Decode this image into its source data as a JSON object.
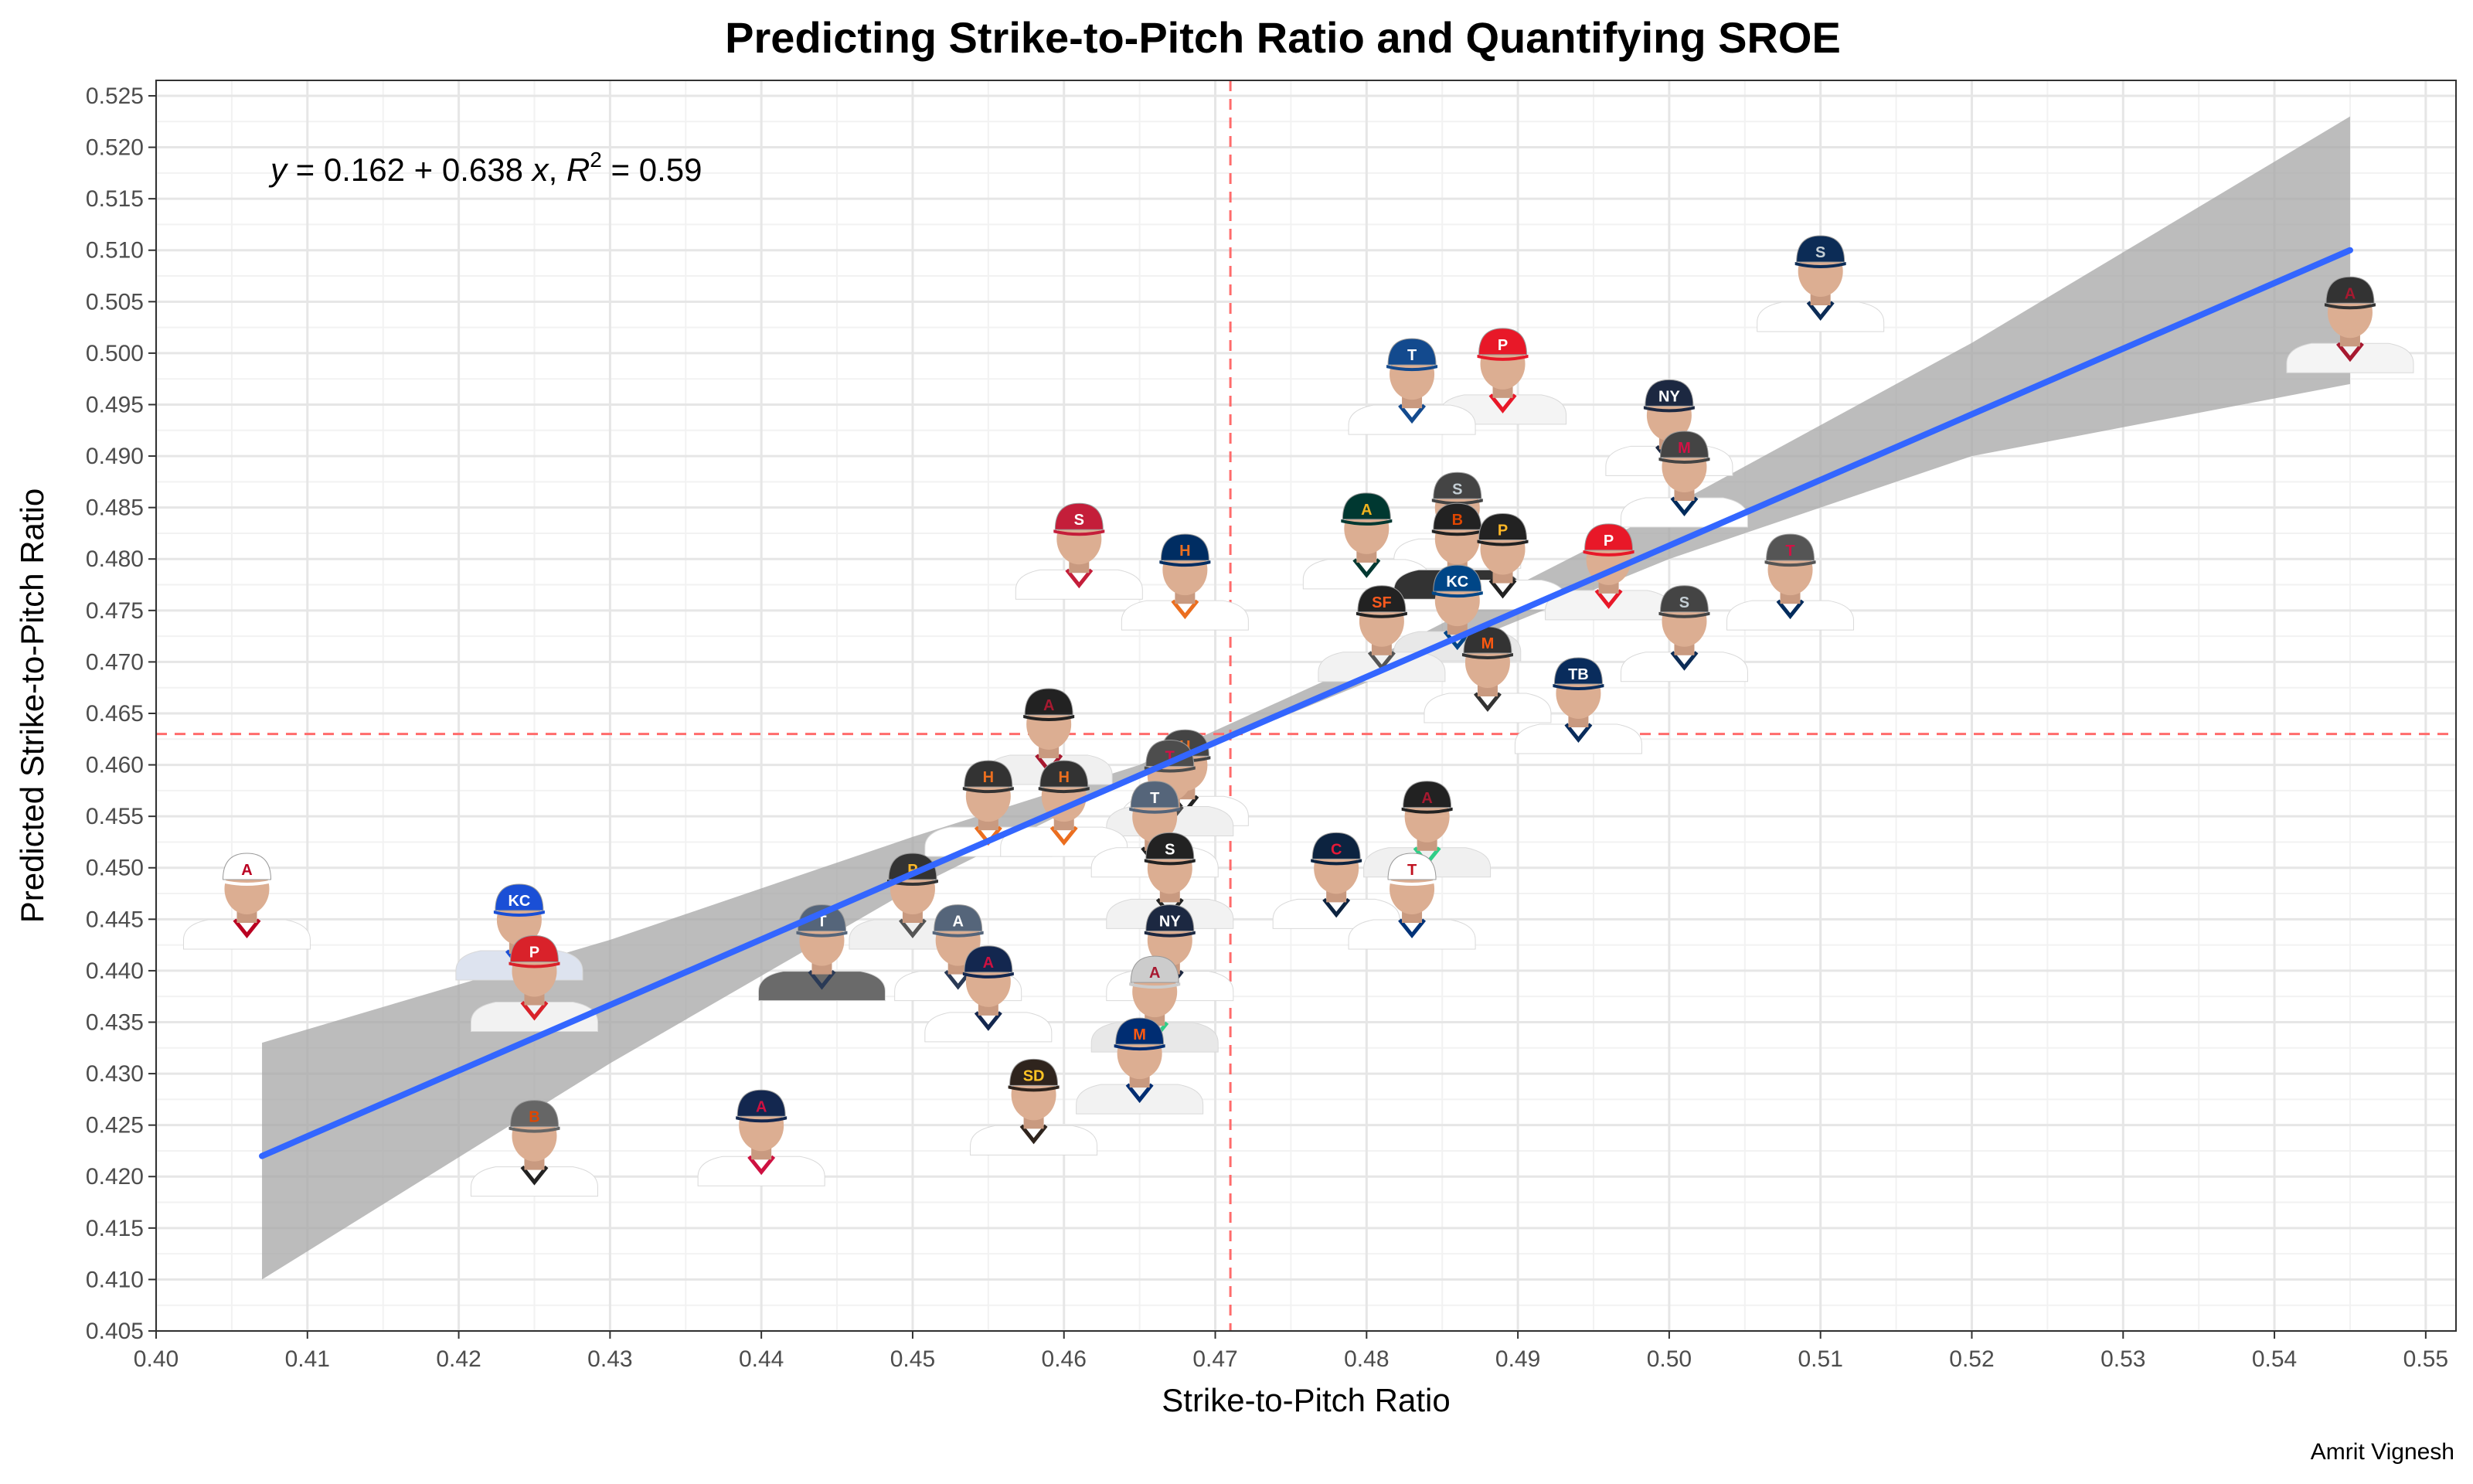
{
  "chart_data": {
    "type": "scatter",
    "title": "Predicting Strike-to-Pitch Ratio and Quantifying SROE",
    "xlabel": "Strike-to-Pitch Ratio",
    "ylabel": "Predicted Strike-to-Pitch Ratio",
    "caption": "Amrit Vignesh",
    "equation": {
      "y": "y",
      "eq_mid": " = 0.162 + 0.638 ",
      "x": "x",
      "sep": ", ",
      "R": "R",
      "sup": "2",
      "tail": " = 0.59",
      "intercept": 0.162,
      "slope": 0.638,
      "r2": 0.59
    },
    "xlim": [
      0.4,
      0.552
    ],
    "ylim": [
      0.405,
      0.5265
    ],
    "x_ticks": [
      "0.40",
      "0.41",
      "0.42",
      "0.43",
      "0.44",
      "0.45",
      "0.46",
      "0.47",
      "0.48",
      "0.49",
      "0.50",
      "0.51",
      "0.52",
      "0.53",
      "0.54",
      "0.55"
    ],
    "y_ticks": [
      "0.405",
      "0.410",
      "0.415",
      "0.420",
      "0.425",
      "0.430",
      "0.435",
      "0.440",
      "0.445",
      "0.450",
      "0.455",
      "0.460",
      "0.465",
      "0.470",
      "0.475",
      "0.480",
      "0.485",
      "0.490",
      "0.495",
      "0.500",
      "0.505",
      "0.510",
      "0.515",
      "0.520",
      "0.525"
    ],
    "mean_x": 0.471,
    "mean_y": 0.463,
    "fit_line": {
      "x": [
        0.407,
        0.545
      ],
      "y": [
        0.422,
        0.51
      ]
    },
    "confidence_band": {
      "x": [
        0.407,
        0.43,
        0.45,
        0.465,
        0.48,
        0.5,
        0.52,
        0.545
      ],
      "lower": [
        0.41,
        0.431,
        0.448,
        0.459,
        0.468,
        0.48,
        0.49,
        0.497
      ],
      "upper": [
        0.433,
        0.443,
        0.453,
        0.46,
        0.47,
        0.485,
        0.501,
        0.523
      ]
    },
    "grid": true,
    "points": [
      {
        "x": 0.406,
        "y": 0.446,
        "team": "LAA",
        "cap": "#ffffff",
        "letter": "A",
        "letter_color": "#ba0021",
        "jersey": "#ffffff",
        "trim": "#ba0021"
      },
      {
        "x": 0.424,
        "y": 0.443,
        "team": "KC",
        "cap": "#1a4fd6",
        "letter": "KC",
        "letter_color": "#ffffff",
        "jersey": "#dde3ef",
        "trim": "#1a4fd6"
      },
      {
        "x": 0.425,
        "y": 0.438,
        "team": "PHI",
        "cap": "#d9222a",
        "letter": "P",
        "letter_color": "#ffffff",
        "jersey": "#f2f2f2",
        "trim": "#d9222a"
      },
      {
        "x": 0.425,
        "y": 0.422,
        "team": "BAL",
        "cap": "#666666",
        "letter": "B",
        "letter_color": "#df4601",
        "jersey": "#ffffff",
        "trim": "#222222"
      },
      {
        "x": 0.44,
        "y": 0.423,
        "team": "ATL",
        "cap": "#13274f",
        "letter": "A",
        "letter_color": "#ce1141",
        "jersey": "#ffffff",
        "trim": "#ce1141"
      },
      {
        "x": 0.444,
        "y": 0.441,
        "team": "TEX",
        "cap": "#55657a",
        "letter": "T",
        "letter_color": "#ffffff",
        "jersey": "#6a6a6a",
        "trim": "#2a3a56"
      },
      {
        "x": 0.45,
        "y": 0.446,
        "team": "PIT",
        "cap": "#333333",
        "letter": "P",
        "letter_color": "#fdb827",
        "jersey": "#f0f0f0",
        "trim": "#555555"
      },
      {
        "x": 0.453,
        "y": 0.441,
        "team": "TEX",
        "cap": "#55657a",
        "letter": "A",
        "letter_color": "#ffffff",
        "jersey": "#ffffff",
        "trim": "#2a3a56"
      },
      {
        "x": 0.455,
        "y": 0.437,
        "team": "ATL",
        "cap": "#13274f",
        "letter": "A",
        "letter_color": "#ce1141",
        "jersey": "#ffffff",
        "trim": "#13274f"
      },
      {
        "x": 0.455,
        "y": 0.455,
        "team": "HOU",
        "cap": "#333333",
        "letter": "H",
        "letter_color": "#eb6e1f",
        "jersey": "#ffffff",
        "trim": "#eb6e1f"
      },
      {
        "x": 0.459,
        "y": 0.462,
        "team": "ARI",
        "cap": "#222222",
        "letter": "A",
        "letter_color": "#a71930",
        "jersey": "#f0f0f0",
        "trim": "#a71930"
      },
      {
        "x": 0.46,
        "y": 0.455,
        "team": "HOU",
        "cap": "#333333",
        "letter": "H",
        "letter_color": "#eb6e1f",
        "jersey": "#ffffff",
        "trim": "#eb6e1f"
      },
      {
        "x": 0.458,
        "y": 0.426,
        "team": "SD",
        "cap": "#2f241d",
        "letter": "SD",
        "letter_color": "#ffc425",
        "jersey": "#ffffff",
        "trim": "#2f241d"
      },
      {
        "x": 0.461,
        "y": 0.48,
        "team": "STL",
        "cap": "#c41e3a",
        "letter": "S",
        "letter_color": "#ffffff",
        "jersey": "#ffffff",
        "trim": "#c41e3a"
      },
      {
        "x": 0.465,
        "y": 0.43,
        "team": "NYM",
        "cap": "#002d72",
        "letter": "M",
        "letter_color": "#ff5910",
        "jersey": "#f2f2f2",
        "trim": "#002d72"
      },
      {
        "x": 0.466,
        "y": 0.453,
        "team": "TEX",
        "cap": "#55657a",
        "letter": "T",
        "letter_color": "#ffffff",
        "jersey": "#ffffff",
        "trim": "#222222"
      },
      {
        "x": 0.467,
        "y": 0.457,
        "team": "MIN",
        "cap": "#4d4d4d",
        "letter": "T",
        "letter_color": "#d31145",
        "jersey": "#f0f0f0",
        "trim": "#4d4d4d"
      },
      {
        "x": 0.467,
        "y": 0.448,
        "team": "CWS",
        "cap": "#222222",
        "letter": "S",
        "letter_color": "#ffffff",
        "jersey": "#f2f2f2",
        "trim": "#222222"
      },
      {
        "x": 0.467,
        "y": 0.441,
        "team": "NYY",
        "cap": "#1c2841",
        "letter": "NY",
        "letter_color": "#ffffff",
        "jersey": "#ffffff",
        "trim": "#1c2841"
      },
      {
        "x": 0.466,
        "y": 0.436,
        "team": "ARI",
        "cap": "#cccccc",
        "letter": "A",
        "letter_color": "#a71930",
        "jersey": "#e8e8e8",
        "trim": "#30ce88"
      },
      {
        "x": 0.468,
        "y": 0.458,
        "team": "HOU",
        "cap": "#444444",
        "letter": "H",
        "letter_color": "#eb6e1f",
        "jersey": "#ffffff",
        "trim": "#222222"
      },
      {
        "x": 0.468,
        "y": 0.477,
        "team": "HOU",
        "cap": "#002d62",
        "letter": "H",
        "letter_color": "#eb6e1f",
        "jersey": "#ffffff",
        "trim": "#eb6e1f"
      },
      {
        "x": 0.48,
        "y": 0.481,
        "team": "OAK",
        "cap": "#003831",
        "letter": "A",
        "letter_color": "#efb21e",
        "jersey": "#ffffff",
        "trim": "#003831"
      },
      {
        "x": 0.478,
        "y": 0.448,
        "team": "CLE",
        "cap": "#0c2340",
        "letter": "C",
        "letter_color": "#e31937",
        "jersey": "#ffffff",
        "trim": "#0c2340"
      },
      {
        "x": 0.481,
        "y": 0.472,
        "team": "SF",
        "cap": "#222222",
        "letter": "SF",
        "letter_color": "#fd5a1e",
        "jersey": "#f2f2f2",
        "trim": "#555555"
      },
      {
        "x": 0.483,
        "y": 0.496,
        "team": "TOR",
        "cap": "#134a8e",
        "letter": "T",
        "letter_color": "#ffffff",
        "jersey": "#ffffff",
        "trim": "#134a8e"
      },
      {
        "x": 0.483,
        "y": 0.446,
        "team": "TEX",
        "cap": "#ffffff",
        "letter": "T",
        "letter_color": "#c0111f",
        "jersey": "#ffffff",
        "trim": "#003278"
      },
      {
        "x": 0.484,
        "y": 0.453,
        "team": "ARI",
        "cap": "#222222",
        "letter": "A",
        "letter_color": "#a71930",
        "jersey": "#f0f0f0",
        "trim": "#30ce88"
      },
      {
        "x": 0.486,
        "y": 0.483,
        "team": "SEA",
        "cap": "#444444",
        "letter": "S",
        "letter_color": "#c4ced4",
        "jersey": "#ffffff",
        "trim": "#0c2c56"
      },
      {
        "x": 0.486,
        "y": 0.48,
        "team": "BAL",
        "cap": "#222222",
        "letter": "B",
        "letter_color": "#df4601",
        "jersey": "#333333",
        "trim": "#222222"
      },
      {
        "x": 0.486,
        "y": 0.474,
        "team": "KC",
        "cap": "#004687",
        "letter": "KC",
        "letter_color": "#ffffff",
        "jersey": "#e8e8e8",
        "trim": "#004687"
      },
      {
        "x": 0.488,
        "y": 0.468,
        "team": "NYM",
        "cap": "#333333",
        "letter": "M",
        "letter_color": "#ff5910",
        "jersey": "#ffffff",
        "trim": "#333333"
      },
      {
        "x": 0.489,
        "y": 0.497,
        "team": "PHI",
        "cap": "#e81828",
        "letter": "P",
        "letter_color": "#ffffff",
        "jersey": "#f4f4f4",
        "trim": "#e81828"
      },
      {
        "x": 0.489,
        "y": 0.479,
        "team": "PIT",
        "cap": "#222222",
        "letter": "P",
        "letter_color": "#fdb827",
        "jersey": "#ffffff",
        "trim": "#222222"
      },
      {
        "x": 0.494,
        "y": 0.465,
        "team": "TB",
        "cap": "#092c5c",
        "letter": "TB",
        "letter_color": "#ffffff",
        "jersey": "#ffffff",
        "trim": "#092c5c"
      },
      {
        "x": 0.496,
        "y": 0.478,
        "team": "PHI",
        "cap": "#e81828",
        "letter": "P",
        "letter_color": "#ffffff",
        "jersey": "#f4f4f4",
        "trim": "#e81828"
      },
      {
        "x": 0.5,
        "y": 0.492,
        "team": "NYY",
        "cap": "#1c2841",
        "letter": "NY",
        "letter_color": "#ffffff",
        "jersey": "#ffffff",
        "trim": "#1c2841"
      },
      {
        "x": 0.501,
        "y": 0.487,
        "team": "MIN",
        "cap": "#444444",
        "letter": "M",
        "letter_color": "#d31145",
        "jersey": "#ffffff",
        "trim": "#002b5c"
      },
      {
        "x": 0.501,
        "y": 0.472,
        "team": "SEA",
        "cap": "#444444",
        "letter": "S",
        "letter_color": "#c4ced4",
        "jersey": "#ffffff",
        "trim": "#0c2c56"
      },
      {
        "x": 0.508,
        "y": 0.477,
        "team": "MIN",
        "cap": "#555555",
        "letter": "T",
        "letter_color": "#d31145",
        "jersey": "#ffffff",
        "trim": "#002b5c"
      },
      {
        "x": 0.51,
        "y": 0.506,
        "team": "SEA",
        "cap": "#0c2c56",
        "letter": "S",
        "letter_color": "#c4ced4",
        "jersey": "#ffffff",
        "trim": "#0c2c56"
      },
      {
        "x": 0.545,
        "y": 0.502,
        "team": "ARI",
        "cap": "#333333",
        "letter": "A",
        "letter_color": "#a71930",
        "jersey": "#f4f4f4",
        "trim": "#a71930"
      }
    ]
  }
}
